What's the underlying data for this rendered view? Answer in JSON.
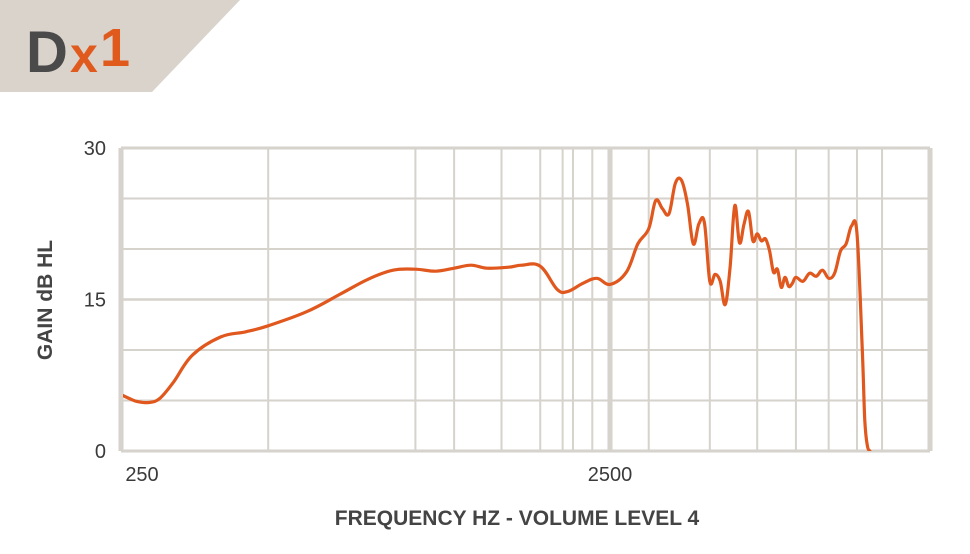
{
  "logo": {
    "text_part1": "D",
    "text_part2": "x",
    "text_part3": "1",
    "bg_color": "#d9d3cc",
    "dark_color": "#4a4a4a",
    "accent_color": "#e05a1e"
  },
  "chart_data": {
    "type": "line",
    "title": "",
    "xlabel": "FREQUENCY HZ - VOLUME LEVEL 4",
    "ylabel": "GAIN dB HL",
    "x_scale": "log",
    "x_tick_labels": [
      {
        "value": 250,
        "label": "250"
      },
      {
        "value": 2500,
        "label": "2500"
      }
    ],
    "y_tick_labels": [
      {
        "value": 0,
        "label": "0"
      },
      {
        "value": 15,
        "label": "15"
      },
      {
        "value": 30,
        "label": "30"
      }
    ],
    "xlim": [
      250,
      9000
    ],
    "ylim": [
      0,
      30
    ],
    "grid": true,
    "grid_color": "#d6d2cc",
    "line_color": "#e0581e",
    "series": [
      {
        "x": [
          240,
          260,
          270,
          285,
          300,
          320,
          350,
          400,
          450,
          500,
          600,
          700,
          800,
          900,
          1000,
          1100,
          1200,
          1300,
          1400,
          1550,
          1650,
          1800,
          1950,
          2050,
          2200,
          2350,
          2500,
          2700,
          2850,
          3000,
          3100,
          3200,
          3300,
          3400,
          3500,
          3600,
          3700,
          3800,
          3900,
          4000,
          4100,
          4200,
          4300,
          4400,
          4500,
          4600,
          4700,
          4800,
          4900,
          5000,
          5100,
          5200,
          5300,
          5400,
          5500,
          5600,
          5700,
          5800,
          5900,
          6000,
          6200,
          6400,
          6600,
          6800,
          7000,
          7200,
          7400,
          7600,
          7800,
          8000,
          8200,
          8300,
          8400,
          8500
        ],
        "y": [
          6.0,
          5.2,
          4.9,
          4.8,
          5.2,
          6.8,
          9.5,
          11.3,
          11.8,
          12.4,
          13.8,
          15.5,
          17.0,
          17.9,
          18.0,
          17.8,
          18.1,
          18.4,
          18.1,
          18.2,
          18.4,
          18.3,
          16.0,
          15.8,
          16.6,
          17.1,
          16.5,
          17.7,
          20.5,
          22.0,
          24.8,
          24.0,
          23.5,
          26.5,
          26.8,
          24.5,
          20.5,
          22.5,
          22.6,
          16.8,
          17.5,
          16.8,
          14.5,
          18.2,
          24.3,
          20.6,
          22.5,
          23.7,
          20.8,
          21.5,
          20.8,
          21.0,
          19.8,
          17.7,
          18.0,
          16.2,
          17.2,
          16.3,
          16.6,
          17.2,
          16.8,
          17.6,
          17.3,
          17.9,
          17.1,
          17.6,
          19.8,
          20.5,
          22.3,
          21.5,
          10.0,
          3.0,
          0.5,
          0.0
        ]
      }
    ]
  }
}
